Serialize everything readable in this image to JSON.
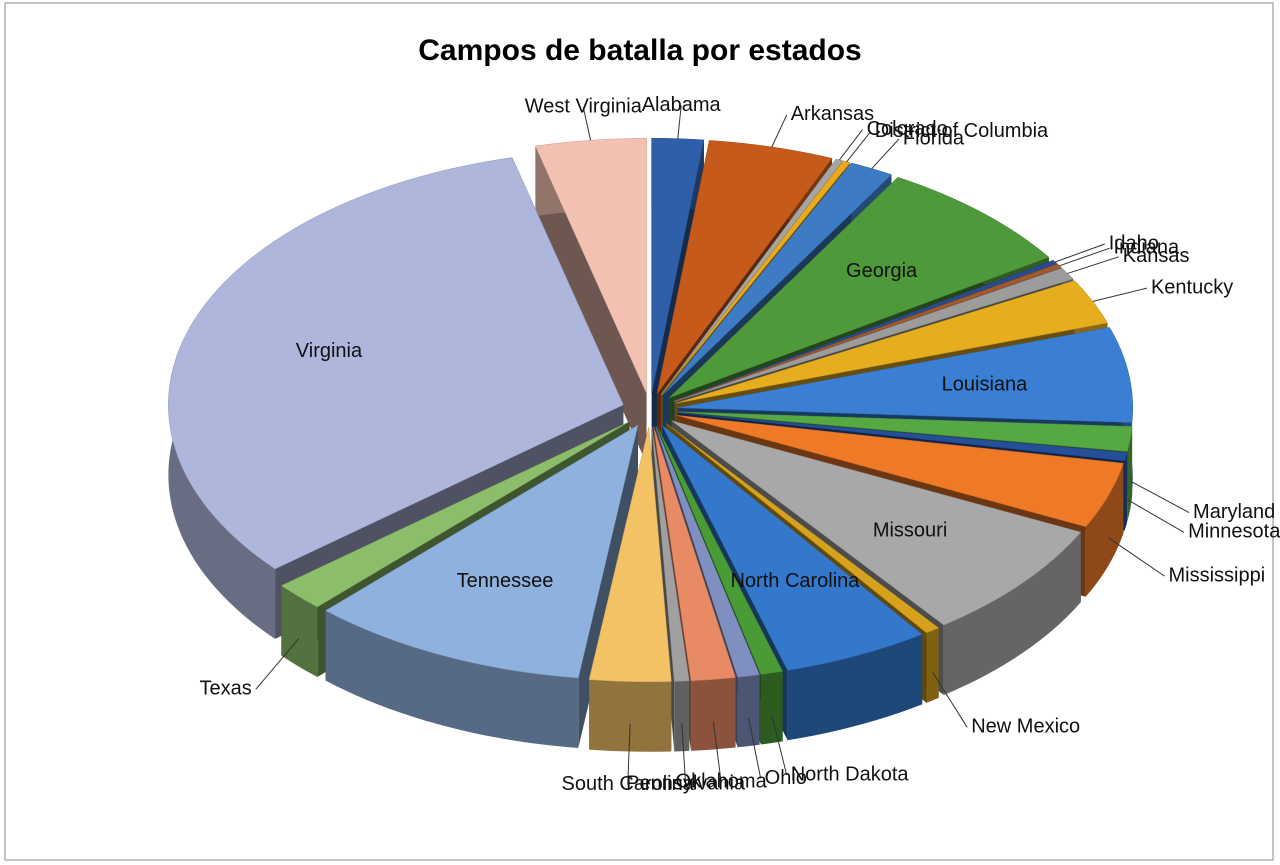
{
  "chart_data": {
    "type": "pie",
    "title": "Campos de batalla por estados",
    "categories": [
      "Alabama",
      "Arkansas",
      "Colorado",
      "District of Columbia",
      "Florida",
      "Georgia",
      "Idaho",
      "Indiana",
      "Kansas",
      "Kentucky",
      "Louisiana",
      "Maryland",
      "Minnesota",
      "Mississippi",
      "Missouri",
      "New Mexico",
      "North Carolina",
      "North Dakota",
      "Ohio",
      "Oklahoma",
      "Pennsylvania",
      "South Carolina",
      "Tennessee",
      "Texas",
      "Virginia",
      "West Virginia"
    ],
    "values": [
      7,
      17,
      1,
      1,
      6,
      28,
      1,
      1,
      3,
      11,
      23,
      6,
      2,
      16,
      29,
      2,
      20,
      3,
      3,
      6,
      2,
      11,
      38,
      7,
      123,
      15
    ],
    "colors": [
      "#2e5fa8",
      "#c55a1b",
      "#a5a5a5",
      "#e8a91c",
      "#3d7cc4",
      "#4e9a3a",
      "#2b4a8e",
      "#a05a2c",
      "#9c9c9c",
      "#e6ad1f",
      "#3a7fd4",
      "#56a843",
      "#264f9a",
      "#ee7a28",
      "#a8a8a8",
      "#d6a21e",
      "#3478cc",
      "#4a9a36",
      "#7f8fbf",
      "#e88a64",
      "#a0a0a0",
      "#f2c265",
      "#8fb1de",
      "#8cbd6a",
      "#aeb6dc",
      "#f2c1b1"
    ]
  }
}
